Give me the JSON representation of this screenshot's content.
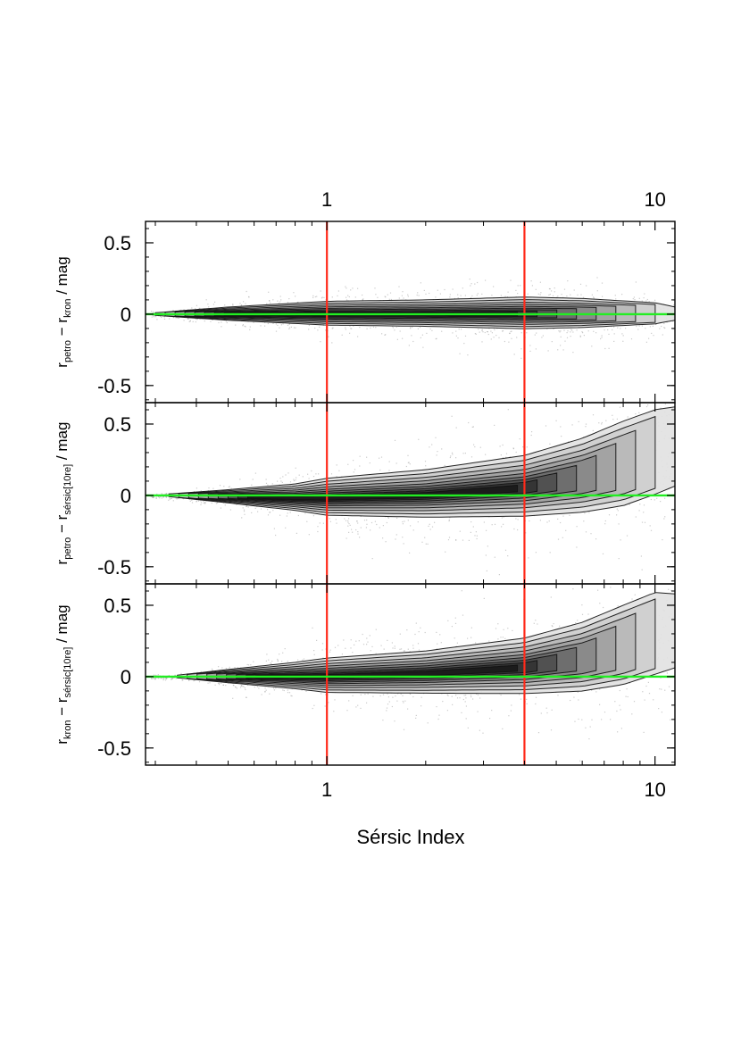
{
  "chart_data": {
    "type": "scatter",
    "xlabel": "Sérsic Index",
    "x_scale": "log",
    "xlim": [
      0.28,
      11.5
    ],
    "x_ticks_labeled": [
      1,
      10
    ],
    "x_tick_labels": [
      "1",
      "10"
    ],
    "x_minor_ticks": [
      0.3,
      0.4,
      0.5,
      0.6,
      0.7,
      0.8,
      0.9,
      2,
      3,
      4,
      5,
      6,
      7,
      8,
      9
    ],
    "vertical_lines": [
      {
        "x": 1,
        "color": "#ff2a1a"
      },
      {
        "x": 4,
        "color": "#ff2a1a"
      }
    ],
    "reference_line": {
      "y": 0,
      "color": "#22ee22"
    },
    "grid": false,
    "legend": "none",
    "panels": [
      {
        "ylabel_main": "r",
        "ylabel_sub1": "petro",
        "ylabel_mid": " − r",
        "ylabel_sub2": "kron",
        "ylabel_end": " / mag",
        "ylim": [
          -0.62,
          0.65
        ],
        "y_ticks": [
          -0.5,
          0,
          0.5
        ],
        "y_tick_labels": [
          "-0.5",
          "0",
          "0.5"
        ],
        "trend": {
          "x": [
            0.3,
            0.5,
            1,
            2,
            4,
            6,
            10,
            11.5
          ],
          "y": [
            0,
            0,
            0,
            0,
            0,
            0,
            0,
            0
          ]
        },
        "width": {
          "x": [
            0.3,
            0.5,
            1,
            2,
            4,
            6,
            10,
            11.5
          ],
          "y": [
            0.01,
            0.05,
            0.09,
            0.1,
            0.12,
            0.11,
            0.08,
            0.05
          ]
        }
      },
      {
        "ylabel_main": "r",
        "ylabel_sub1": "petro",
        "ylabel_mid": " − r",
        "ylabel_sub2": "sérsic[10re]",
        "ylabel_end": " / mag",
        "ylim": [
          -0.62,
          0.65
        ],
        "y_ticks": [
          -0.5,
          0,
          0.5
        ],
        "y_tick_labels": [
          "-0.5",
          "0",
          "0.5"
        ],
        "trend": {
          "x": [
            0.33,
            0.5,
            0.8,
            1,
            2,
            4,
            6,
            8,
            10,
            11.5
          ],
          "y": [
            0.0,
            -0.01,
            -0.02,
            -0.02,
            0.0,
            0.05,
            0.12,
            0.2,
            0.28,
            0.32
          ]
        },
        "width": {
          "x": [
            0.33,
            0.5,
            0.8,
            1,
            2,
            4,
            6,
            8,
            10,
            11.5
          ],
          "y": [
            0.01,
            0.05,
            0.1,
            0.14,
            0.18,
            0.23,
            0.28,
            0.32,
            0.32,
            0.3
          ]
        }
      },
      {
        "ylabel_main": "r",
        "ylabel_sub1": "kron",
        "ylabel_mid": " − r",
        "ylabel_sub2": "sérsic[10re]",
        "ylabel_end": " / mag",
        "ylim": [
          -0.62,
          0.65
        ],
        "y_ticks": [
          -0.5,
          0,
          0.5
        ],
        "y_tick_labels": [
          "-0.5",
          "0",
          "0.5"
        ],
        "trend": {
          "x": [
            0.35,
            0.5,
            0.8,
            1,
            2,
            4,
            6,
            8,
            10,
            11.5
          ],
          "y": [
            0.0,
            0.0,
            0.0,
            0.0,
            0.02,
            0.06,
            0.12,
            0.2,
            0.28,
            0.3
          ]
        },
        "width": {
          "x": [
            0.35,
            0.5,
            0.8,
            1,
            2,
            4,
            6,
            8,
            10,
            11.5
          ],
          "y": [
            0.01,
            0.05,
            0.1,
            0.13,
            0.16,
            0.21,
            0.26,
            0.3,
            0.31,
            0.28
          ]
        }
      }
    ],
    "top_axis_tick_labels": [
      "1",
      "10"
    ]
  }
}
